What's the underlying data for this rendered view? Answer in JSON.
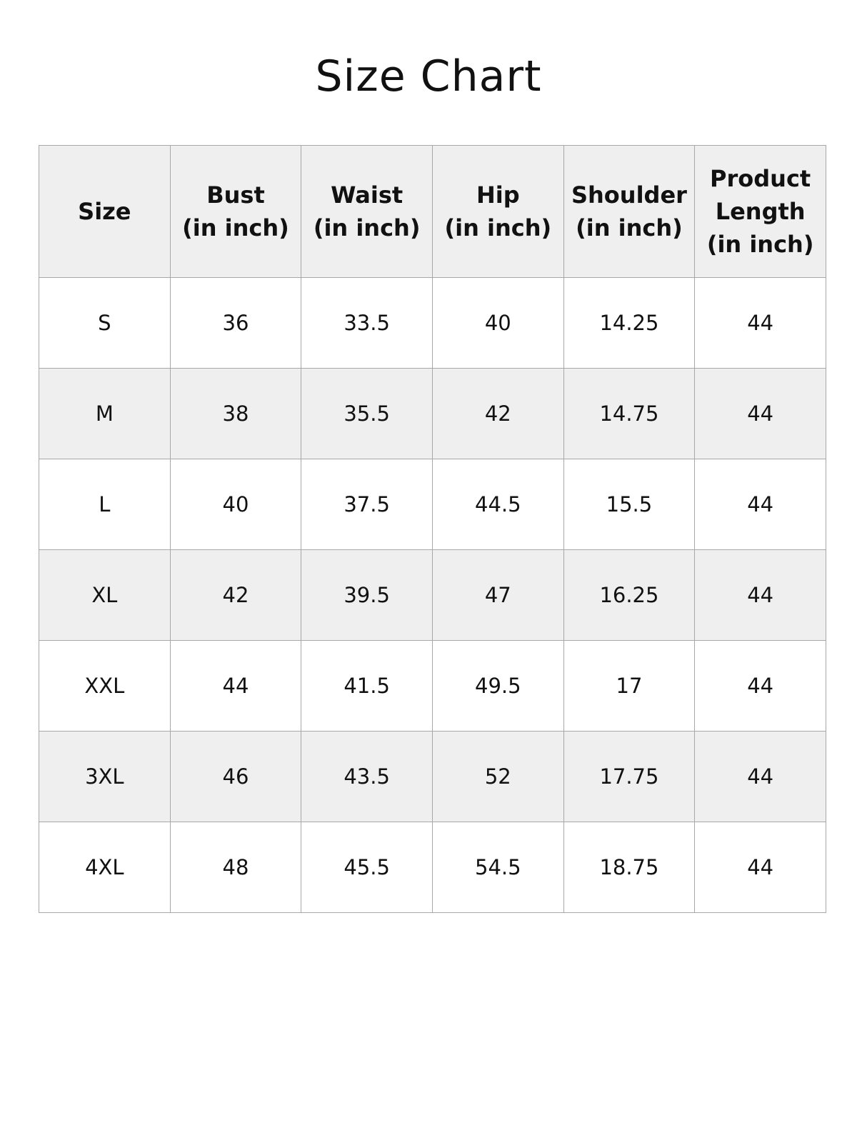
{
  "title": "Size Chart",
  "headers": [
    [
      "Size"
    ],
    [
      "Bust",
      "(in inch)"
    ],
    [
      "Waist",
      "(in inch)"
    ],
    [
      "Hip",
      "(in inch)"
    ],
    [
      "Shoulder",
      "(in inch)"
    ],
    [
      "Product",
      "Length",
      "(in inch)"
    ]
  ],
  "rows": [
    [
      "S",
      "36",
      "33.5",
      "40",
      "14.25",
      "44"
    ],
    [
      "M",
      "38",
      "35.5",
      "42",
      "14.75",
      "44"
    ],
    [
      "L",
      "40",
      "37.5",
      "44.5",
      "15.5",
      "44"
    ],
    [
      "XL",
      "42",
      "39.5",
      "47",
      "16.25",
      "44"
    ],
    [
      "XXL",
      "44",
      "41.5",
      "49.5",
      "17",
      "44"
    ],
    [
      "3XL",
      "46",
      "43.5",
      "52",
      "17.75",
      "44"
    ],
    [
      "4XL",
      "48",
      "45.5",
      "54.5",
      "18.75",
      "44"
    ]
  ],
  "colors": {
    "header_bg": "#efefef",
    "alt_row_bg": "#efefef",
    "border": "#a8a8a8"
  }
}
